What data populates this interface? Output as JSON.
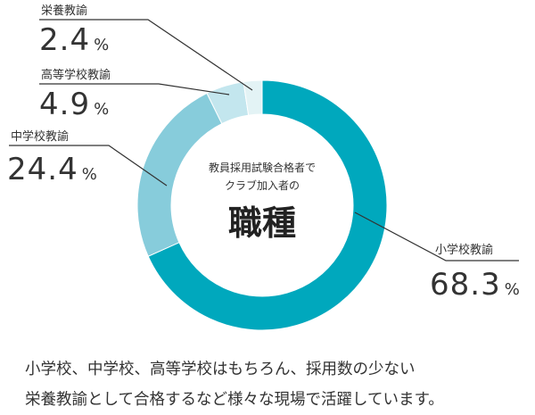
{
  "chart_data": {
    "type": "pie",
    "categories": [
      "小学校教諭",
      "中学校教諭",
      "高等学校教諭",
      "栄養教諭"
    ],
    "values": [
      68.3,
      24.4,
      4.9,
      2.4
    ],
    "unit": "%",
    "colors": [
      "#00a8bd",
      "#87ccdb",
      "#c3e6ee",
      "#e3f3f5"
    ],
    "center_text": [
      "教員採用試験合格者で",
      "クラブ加入者の"
    ],
    "center_title": "職種"
  },
  "caption": {
    "line1": "小学校、中学校、高等学校はもちろん、採用数の少ない",
    "line2": "栄養教諭として合格するなど様々な現場で活躍しています。"
  }
}
